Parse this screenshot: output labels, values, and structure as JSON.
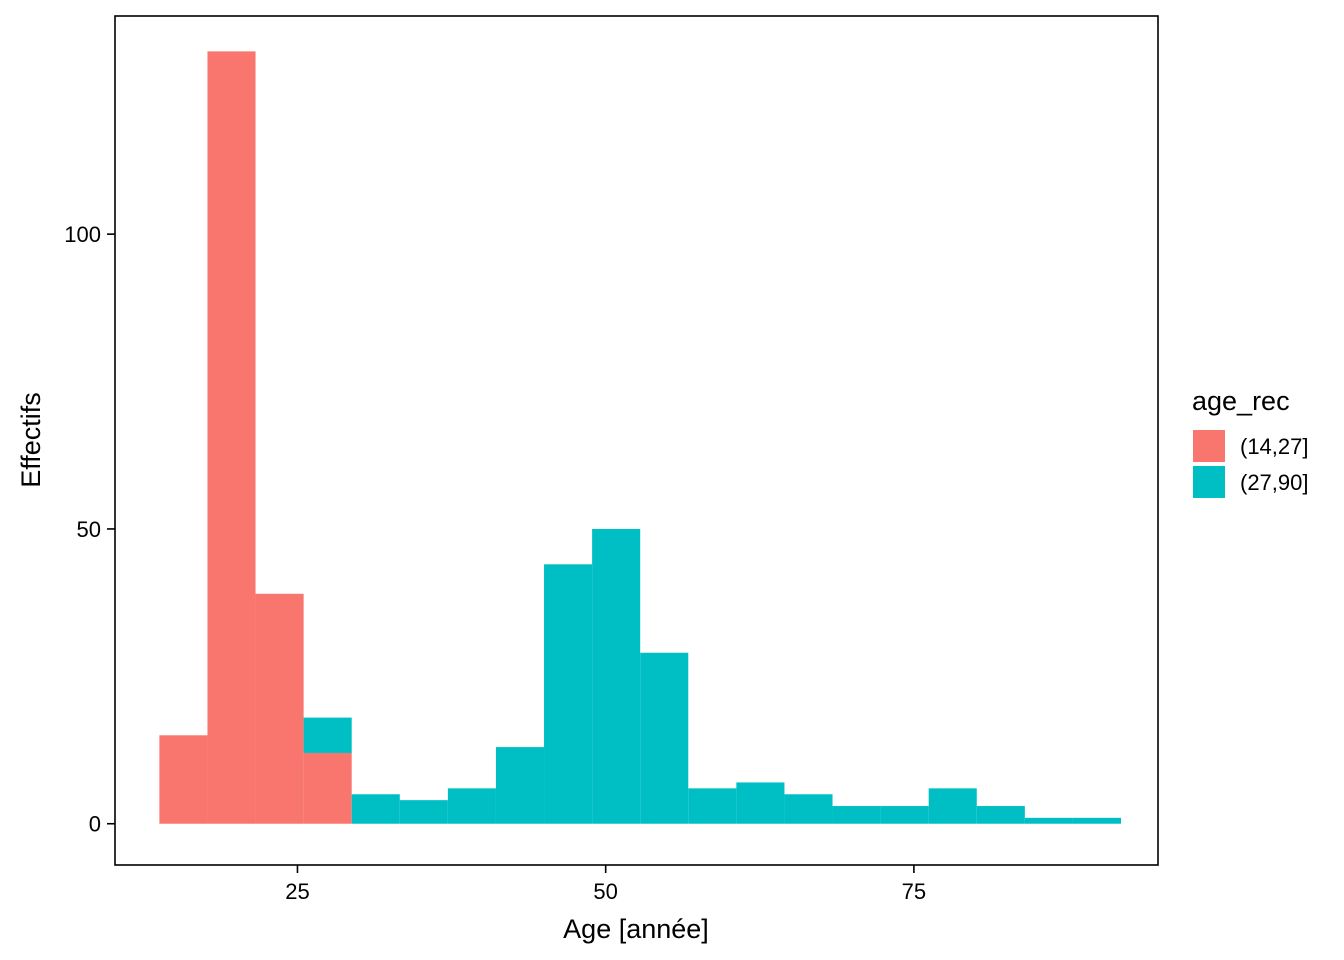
{
  "chart_data": {
    "type": "bar",
    "subtype": "stacked-histogram",
    "xlabel": "Age  [année]",
    "ylabel": "Effectifs",
    "xlim": [
      10.2,
      94.8
    ],
    "ylim": [
      -7,
      137
    ],
    "x_ticks": [
      25,
      50,
      75
    ],
    "y_ticks": [
      0,
      50,
      100
    ],
    "grid": false,
    "legend": {
      "title": "age_rec",
      "position": "right",
      "entries": [
        {
          "label": "(14,27]",
          "color": "#F8766D"
        },
        {
          "label": "(27,90]",
          "color": "#00BFC4"
        }
      ]
    },
    "bin_width": 3.9,
    "series": [
      {
        "name": "(14,27]",
        "color": "#F8766D",
        "bars": [
          {
            "x0": 13.8,
            "x1": 17.7,
            "count": 15
          },
          {
            "x0": 17.7,
            "x1": 21.6,
            "count": 131
          },
          {
            "x0": 21.6,
            "x1": 25.5,
            "count": 39
          },
          {
            "x0": 25.5,
            "x1": 29.4,
            "count": 12
          }
        ]
      },
      {
        "name": "(27,90]",
        "color": "#00BFC4",
        "bars": [
          {
            "x0": 21.6,
            "x1": 25.5,
            "count": 0
          },
          {
            "x0": 25.5,
            "x1": 29.4,
            "count": 6
          },
          {
            "x0": 29.4,
            "x1": 33.3,
            "count": 5
          },
          {
            "x0": 33.3,
            "x1": 37.2,
            "count": 4
          },
          {
            "x0": 37.2,
            "x1": 41.1,
            "count": 6
          },
          {
            "x0": 41.1,
            "x1": 45.0,
            "count": 13
          },
          {
            "x0": 45.0,
            "x1": 48.9,
            "count": 44
          },
          {
            "x0": 48.9,
            "x1": 52.8,
            "count": 50
          },
          {
            "x0": 52.8,
            "x1": 56.7,
            "count": 29
          },
          {
            "x0": 56.7,
            "x1": 60.6,
            "count": 6
          },
          {
            "x0": 60.6,
            "x1": 64.5,
            "count": 7
          },
          {
            "x0": 64.5,
            "x1": 68.4,
            "count": 5
          },
          {
            "x0": 68.4,
            "x1": 72.3,
            "count": 3
          },
          {
            "x0": 72.3,
            "x1": 76.2,
            "count": 3
          },
          {
            "x0": 76.2,
            "x1": 80.1,
            "count": 6
          },
          {
            "x0": 80.1,
            "x1": 84.0,
            "count": 3
          },
          {
            "x0": 84.0,
            "x1": 87.9,
            "count": 1
          },
          {
            "x0": 87.9,
            "x1": 91.8,
            "count": 1
          }
        ]
      }
    ]
  }
}
